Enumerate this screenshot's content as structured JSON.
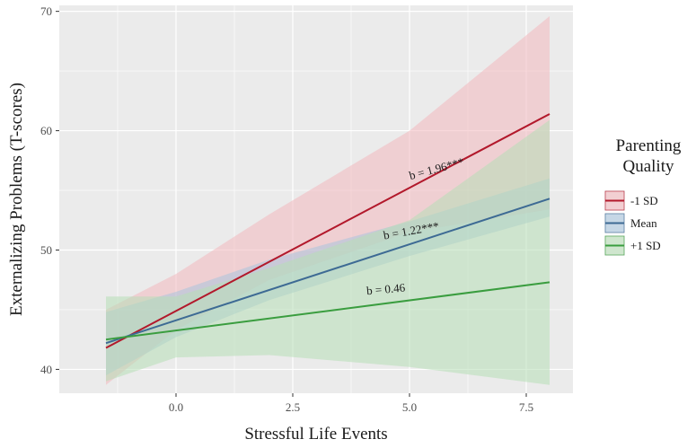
{
  "chart_data": {
    "type": "line",
    "title": "",
    "xlabel": "Stressful Life Events",
    "ylabel": "Externalizing Problems (T-scores)",
    "xlim": [
      -2.5,
      8.5
    ],
    "ylim": [
      38,
      70.5
    ],
    "xticks": [
      0.0,
      2.5,
      5.0,
      7.5
    ],
    "xtick_labels": [
      "0.0",
      "2.5",
      "5.0",
      "7.5"
    ],
    "yticks": [
      40,
      50,
      60,
      70
    ],
    "ytick_labels": [
      "40",
      "50",
      "60",
      "70"
    ],
    "grid": true,
    "legend": {
      "title_lines": [
        "Parenting",
        "Quality"
      ],
      "placement": "right"
    },
    "series": [
      {
        "name": "-1 SD",
        "color": "#b2182b",
        "fill": "#f2b8bd",
        "x": [
          -1.5,
          8.0
        ],
        "values": [
          41.8,
          61.4
        ],
        "ci_x": [
          -1.5,
          0.0,
          2.0,
          5.0,
          8.0
        ],
        "ci_lower": [
          38.7,
          43.3,
          47.5,
          51.5,
          53.4
        ],
        "ci_upper": [
          45.0,
          48.0,
          53.0,
          60.0,
          69.6
        ],
        "annotation": "b = 1.96***",
        "annotation_x": 5.6,
        "annotation_y": 56.5,
        "annotation_angle": -15
      },
      {
        "name": "Mean",
        "color": "#3d6a94",
        "fill": "#a9c4dd",
        "x": [
          -1.5,
          8.0
        ],
        "values": [
          42.2,
          54.3
        ],
        "ci_x": [
          -1.5,
          0.0,
          2.0,
          5.0,
          8.0
        ],
        "ci_lower": [
          39.5,
          42.7,
          45.8,
          49.5,
          52.8
        ],
        "ci_upper": [
          44.8,
          46.5,
          49.2,
          52.4,
          56.0
        ],
        "annotation": "b = 1.22***",
        "annotation_x": 5.05,
        "annotation_y": 51.3,
        "annotation_angle": -10
      },
      {
        "name": "+1 SD",
        "color": "#3a9d3f",
        "fill": "#b7deb6",
        "x": [
          -1.5,
          8.0
        ],
        "values": [
          42.5,
          47.3
        ],
        "ci_x": [
          -1.5,
          0.0,
          2.0,
          5.0,
          8.0
        ],
        "ci_lower": [
          39.0,
          41.0,
          41.2,
          40.2,
          38.7
        ],
        "ci_upper": [
          46.1,
          46.1,
          48.5,
          52.5,
          60.9
        ],
        "annotation": "b = 0.46",
        "annotation_x": 4.5,
        "annotation_y": 46.4,
        "annotation_angle": -5
      }
    ]
  }
}
